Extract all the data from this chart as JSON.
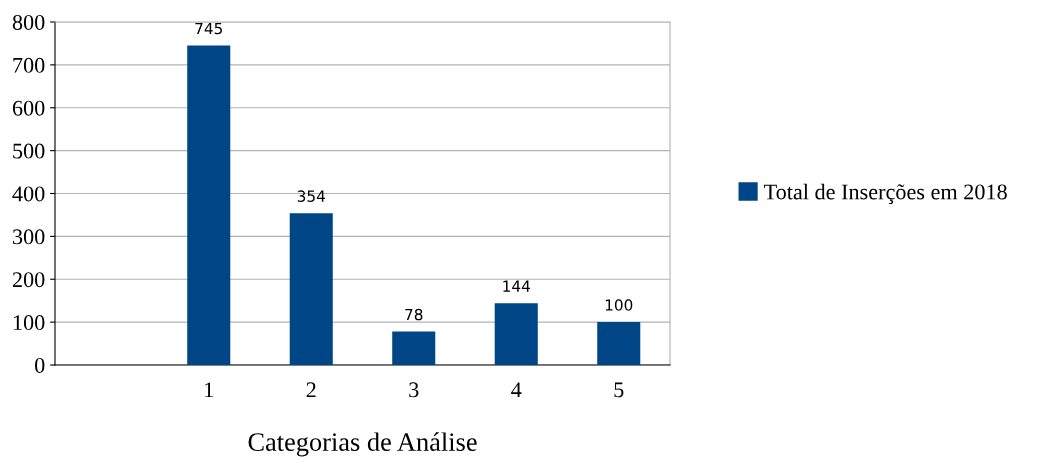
{
  "chart_data": {
    "type": "bar",
    "xlabel": "Categorias de Análise",
    "categories": [
      null,
      "1",
      "2",
      "3",
      "4",
      "5"
    ],
    "series": [
      {
        "name": "Total de Inserções em 2018",
        "color": "#004586",
        "values": [
          null,
          745,
          354,
          78,
          144,
          100
        ]
      }
    ],
    "ylim": [
      0,
      800
    ],
    "yticks": [
      0,
      100,
      200,
      300,
      400,
      500,
      600,
      700,
      800
    ],
    "grid": "y",
    "legend": "right",
    "data_labels": true
  }
}
